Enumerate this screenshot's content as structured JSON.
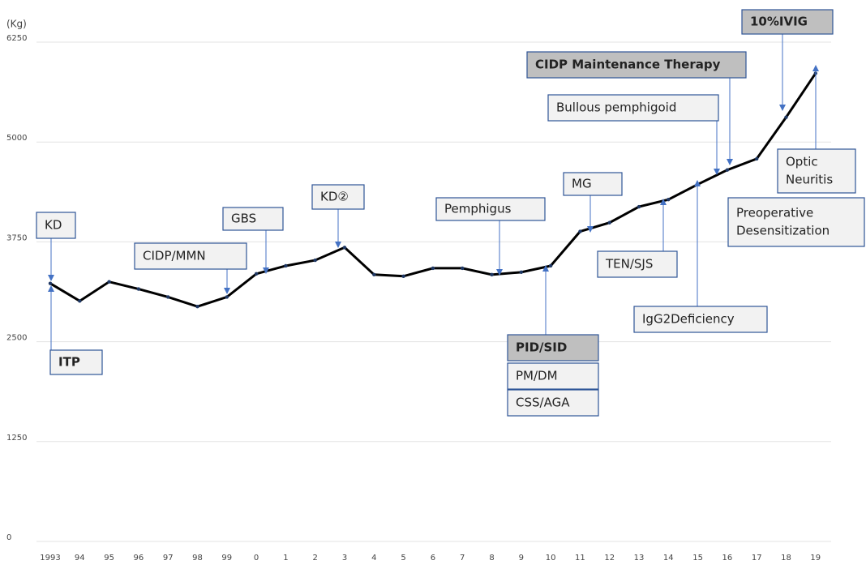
{
  "chart_data": {
    "type": "line",
    "ylabel": "(Kg)",
    "categories": [
      "1993",
      "94",
      "95",
      "96",
      "97",
      "98",
      "99",
      "0",
      "1",
      "2",
      "3",
      "4",
      "5",
      "6",
      "7",
      "8",
      "9",
      "10",
      "11",
      "12",
      "13",
      "14",
      "15",
      "16",
      "17",
      "18",
      "19"
    ],
    "values": [
      3230,
      3010,
      3250,
      3160,
      3060,
      2940,
      3060,
      3350,
      3450,
      3520,
      3680,
      3340,
      3320,
      3420,
      3420,
      3340,
      3370,
      3450,
      3880,
      3990,
      4190,
      4280,
      4470,
      4650,
      4790,
      5310,
      5860
    ],
    "color": "#000000",
    "ylim": [
      0,
      6250
    ],
    "yticks": [
      0,
      1250,
      2500,
      3750,
      5000,
      6250
    ],
    "grid": true,
    "annotations": [
      [
        "KD"
      ],
      [
        "ITP"
      ],
      [
        "CIDP/MMN"
      ],
      [
        "GBS"
      ],
      [
        "KD②"
      ],
      [
        "Pemphigus"
      ],
      [
        "MG"
      ],
      [
        "PID/SID"
      ],
      [
        "PM/DM"
      ],
      [
        "CSS/AGA"
      ],
      [
        "TEN/SJS"
      ],
      [
        "IgG2Deficiency"
      ],
      [
        "Bullous pemphigoid"
      ],
      [
        "CIDP Maintenance Therapy"
      ],
      [
        "10%IVIG"
      ],
      [
        "Optic",
        "Neuritis"
      ],
      [
        "Preoperative",
        "Desensitization"
      ]
    ]
  }
}
